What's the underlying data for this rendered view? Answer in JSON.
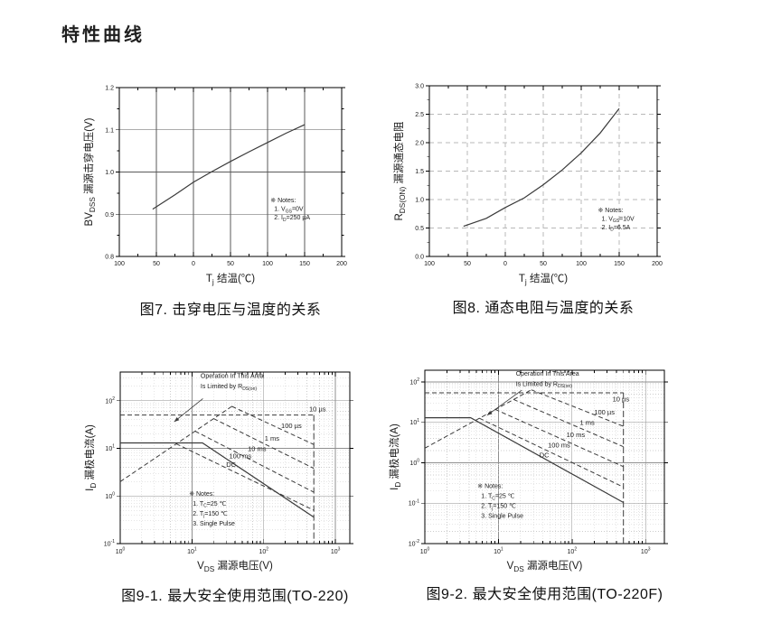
{
  "page": {
    "title": "特性曲线"
  },
  "colors": {
    "ink": "#1a1a1a",
    "curve": "#3a3a3a",
    "border": "#000000"
  },
  "chart_data": [
    {
      "id": "fig7",
      "type": "line",
      "caption": "图7. 击穿电压与温度的关系",
      "xlabel": [
        {
          "t": "T"
        },
        {
          "t": "j",
          "sub": true
        },
        {
          "t": " 结温(℃)"
        }
      ],
      "ylabel": [
        {
          "t": "BV"
        },
        {
          "t": "DSS",
          "sub": true
        },
        {
          "t": " 漏源击穿电压(V)"
        }
      ],
      "x_axis": {
        "type": "linear",
        "min": -100,
        "max": 200,
        "ticks": [
          {
            "v": -100,
            "label": "100"
          },
          {
            "v": -50,
            "label": "50"
          },
          {
            "v": 0,
            "label": "0"
          },
          {
            "v": 50,
            "label": "50"
          },
          {
            "v": 100,
            "label": "100"
          },
          {
            "v": 150,
            "label": "150"
          },
          {
            "v": 200,
            "label": "200"
          }
        ]
      },
      "y_axis": {
        "type": "linear",
        "min": 0.8,
        "max": 1.2,
        "ticks": [
          {
            "v": 0.8,
            "label": "0.8"
          },
          {
            "v": 0.9,
            "label": "0.9"
          },
          {
            "v": 1.0,
            "label": "1.0"
          },
          {
            "v": 1.1,
            "label": "1.1"
          },
          {
            "v": 1.2,
            "label": "1.2"
          }
        ]
      },
      "grid": {
        "style": "solid",
        "color": "#5a5a5a"
      },
      "series": [
        {
          "name": "bvdss-vs-tj",
          "style": "solid",
          "x": [
            -55,
            -25,
            0,
            25,
            50,
            75,
            100,
            125,
            150
          ],
          "y": [
            0.912,
            0.946,
            0.976,
            1.001,
            1.025,
            1.048,
            1.07,
            1.092,
            1.112
          ]
        }
      ],
      "notes": {
        "x": 0.68,
        "y": 0.68,
        "lh": 9.5,
        "lines": [
          [
            {
              "t": "※ Notes:"
            }
          ],
          [
            {
              "t": "1. V"
            },
            {
              "t": "GS",
              "sub": true
            },
            {
              "t": "=0V"
            }
          ],
          [
            {
              "t": "2. I"
            },
            {
              "t": "D",
              "sub": true
            },
            {
              "t": "=250 µA"
            }
          ]
        ]
      }
    },
    {
      "id": "fig8",
      "type": "line",
      "caption": "图8. 通态电阻与温度的关系",
      "xlabel": [
        {
          "t": "T"
        },
        {
          "t": "j",
          "sub": true
        },
        {
          "t": " 结温(℃)"
        }
      ],
      "ylabel": [
        {
          "t": "R"
        },
        {
          "t": "DS(ON)",
          "sub": true
        },
        {
          "t": " 漏源通态电阻"
        }
      ],
      "x_axis": {
        "type": "linear",
        "min": -100,
        "max": 200,
        "ticks": [
          {
            "v": -100,
            "label": "100"
          },
          {
            "v": -50,
            "label": "50"
          },
          {
            "v": 0,
            "label": "0"
          },
          {
            "v": 50,
            "label": "50"
          },
          {
            "v": 100,
            "label": "100"
          },
          {
            "v": 150,
            "label": "150"
          },
          {
            "v": 200,
            "label": "200"
          }
        ]
      },
      "y_axis": {
        "type": "linear",
        "min": 0,
        "max": 3.0,
        "ticks": [
          {
            "v": 0,
            "label": "0.0"
          },
          {
            "v": 0.5,
            "label": "0.5"
          },
          {
            "v": 1.0,
            "label": "1.0"
          },
          {
            "v": 1.5,
            "label": "1.5"
          },
          {
            "v": 2.0,
            "label": "2.0"
          },
          {
            "v": 2.5,
            "label": "2.5"
          },
          {
            "v": 3.0,
            "label": "3.0"
          }
        ]
      },
      "grid": {
        "style": "dashed",
        "color": "#b8b8b8"
      },
      "series": [
        {
          "name": "rdson-vs-tj",
          "style": "solid",
          "x": [
            -55,
            -25,
            0,
            25,
            50,
            75,
            100,
            125,
            150
          ],
          "y": [
            0.53,
            0.67,
            0.86,
            1.03,
            1.26,
            1.52,
            1.82,
            2.17,
            2.6
          ]
        }
      ],
      "notes": {
        "x": 0.74,
        "y": 0.74,
        "lh": 9.5,
        "lines": [
          [
            {
              "t": "※ Notes:"
            }
          ],
          [
            {
              "t": "1. V"
            },
            {
              "t": "GS",
              "sub": true
            },
            {
              "t": "=10V"
            }
          ],
          [
            {
              "t": "2. I"
            },
            {
              "t": "D",
              "sub": true
            },
            {
              "t": "=6.5A"
            }
          ]
        ]
      }
    },
    {
      "id": "fig9-1",
      "type": "line",
      "caption": "图9-1. 最大安全使用范围(TO-220)",
      "xlabel": [
        {
          "t": "V"
        },
        {
          "t": "DS",
          "sub": true
        },
        {
          "t": " 漏源电压(V)"
        }
      ],
      "ylabel": [
        {
          "t": "I"
        },
        {
          "t": "D",
          "sub": true
        },
        {
          "t": " 漏极电流(A)"
        }
      ],
      "x_axis": {
        "type": "log",
        "min": 1,
        "max": 1585,
        "ticks": [
          {
            "v": 1,
            "exp": "0"
          },
          {
            "v": 10,
            "exp": "1"
          },
          {
            "v": 100,
            "exp": "2"
          },
          {
            "v": 1000,
            "exp": "3"
          }
        ]
      },
      "y_axis": {
        "type": "log",
        "min": 0.1,
        "max": 400,
        "ticks": [
          {
            "v": 100,
            "exp": "2"
          },
          {
            "v": 10,
            "exp": "1"
          },
          {
            "v": 1,
            "exp": "0"
          },
          {
            "v": 0.1,
            "exp": "-1"
          }
        ]
      },
      "grid": {
        "major_color": "#8f8f8f",
        "minor_color": "#cccccc"
      },
      "series": [
        {
          "name": "rdson-limit-line",
          "style": "dashed",
          "x": [
            1,
            36
          ],
          "y": [
            2,
            76
          ]
        },
        {
          "name": "pulse-10us",
          "style": "dashed",
          "x": [
            1,
            500
          ],
          "y": [
            50,
            50
          ],
          "label": {
            "text": "10 µs",
            "x": 430,
            "y": 60
          }
        },
        {
          "name": "pulse-100us",
          "style": "dashed",
          "x": [
            36,
            500
          ],
          "y": [
            76,
            12
          ],
          "label": {
            "text": "100 µs",
            "x": 175,
            "y": 27
          }
        },
        {
          "name": "pulse-1ms",
          "style": "dashed",
          "x": [
            20,
            500
          ],
          "y": [
            42,
            3.8
          ],
          "label": {
            "text": "1 ms",
            "x": 103,
            "y": 14.5
          }
        },
        {
          "name": "pulse-10ms",
          "style": "dashed",
          "x": [
            11,
            500
          ],
          "y": [
            23,
            1.2
          ],
          "label": {
            "text": "10 ms",
            "x": 60,
            "y": 8.8
          }
        },
        {
          "name": "pulse-100ms",
          "style": "dashed",
          "x": [
            6,
            500
          ],
          "y": [
            12.5,
            0.5
          ],
          "label": {
            "text": "100 ms",
            "x": 33,
            "y": 6.2
          }
        },
        {
          "name": "dc-limit",
          "style": "solid",
          "x": [
            1,
            14,
            500
          ],
          "y": [
            13,
            13,
            0.36
          ],
          "label": {
            "text": "DC",
            "x": 30,
            "y": 4.1
          }
        },
        {
          "name": "voltage-limit",
          "style": "dashlong",
          "x": [
            500,
            500
          ],
          "y": [
            50,
            0.1
          ]
        }
      ],
      "annotation": {
        "x": 0.35,
        "lines_y": [
          0.035,
          0.095
        ],
        "lines": [
          [
            {
              "t": "Operation In This Area"
            }
          ],
          [
            {
              "t": "Is Limited by R"
            },
            {
              "t": "DS(on)",
              "sub": true
            }
          ]
        ],
        "arrow": {
          "x1": 0.36,
          "y1": 0.155,
          "x2": 0.235,
          "y2": 0.29
        }
      },
      "notes": {
        "x": 0.3,
        "y": 0.72,
        "lh": 11,
        "lines": [
          [
            {
              "t": "※ Notes:"
            }
          ],
          [
            {
              "t": "1. T"
            },
            {
              "t": "C",
              "sub": true
            },
            {
              "t": "=25 ℃"
            }
          ],
          [
            {
              "t": "2. T"
            },
            {
              "t": "j",
              "sub": true
            },
            {
              "t": "=150 ℃"
            }
          ],
          [
            {
              "t": "3. Single Pulse"
            }
          ]
        ]
      }
    },
    {
      "id": "fig9-2",
      "type": "line",
      "caption": "图9-2. 最大安全使用范围(TO-220F)",
      "xlabel": [
        {
          "t": "V"
        },
        {
          "t": "DS",
          "sub": true
        },
        {
          "t": " 漏源电压(V)"
        }
      ],
      "ylabel": [
        {
          "t": "I"
        },
        {
          "t": "D",
          "sub": true
        },
        {
          "t": " 漏极电流(A)"
        }
      ],
      "x_axis": {
        "type": "log",
        "min": 1,
        "max": 1800,
        "ticks": [
          {
            "v": 1,
            "exp": "0"
          },
          {
            "v": 10,
            "exp": "1"
          },
          {
            "v": 100,
            "exp": "2"
          },
          {
            "v": 1000,
            "exp": "3"
          }
        ]
      },
      "y_axis": {
        "type": "log",
        "min": 0.01,
        "max": 195,
        "ticks": [
          {
            "v": 100,
            "exp": "2"
          },
          {
            "v": 10,
            "exp": "1"
          },
          {
            "v": 1,
            "exp": "0"
          },
          {
            "v": 0.1,
            "exp": "-1"
          },
          {
            "v": 0.01,
            "exp": "-2"
          }
        ]
      },
      "grid": {
        "major_color": "#8f8f8f",
        "minor_color": "#cccccc"
      },
      "series": [
        {
          "name": "rdson-limit-line",
          "style": "dashed",
          "x": [
            1,
            28
          ],
          "y": [
            2.3,
            64
          ]
        },
        {
          "name": "pulse-10us",
          "style": "dashed",
          "x": [
            1,
            500
          ],
          "y": [
            54,
            54
          ],
          "label": {
            "text": "10 µs",
            "x": 355,
            "y": 33
          }
        },
        {
          "name": "pulse-100us",
          "style": "dashed",
          "x": [
            28,
            500
          ],
          "y": [
            64,
            8
          ],
          "label": {
            "text": "100 µs",
            "x": 200,
            "y": 15.5
          }
        },
        {
          "name": "pulse-1ms",
          "style": "dashed",
          "x": [
            16,
            500
          ],
          "y": [
            37,
            2.5
          ],
          "label": {
            "text": "1 ms",
            "x": 128,
            "y": 8.6
          }
        },
        {
          "name": "pulse-10ms",
          "style": "dashed",
          "x": [
            9,
            500
          ],
          "y": [
            21,
            0.8
          ],
          "label": {
            "text": "10 ms",
            "x": 84,
            "y": 4.3
          }
        },
        {
          "name": "pulse-100ms",
          "style": "dashed",
          "x": [
            5.5,
            500
          ],
          "y": [
            12.6,
            0.25
          ],
          "label": {
            "text": "100 ms",
            "x": 47,
            "y": 2.4
          }
        },
        {
          "name": "dc-limit",
          "style": "solid",
          "x": [
            1,
            4.2,
            500
          ],
          "y": [
            13,
            13,
            0.104
          ],
          "label": {
            "text": "DC",
            "x": 36,
            "y": 1.35
          }
        },
        {
          "name": "voltage-limit",
          "style": "dashlong",
          "x": [
            500,
            500
          ],
          "y": [
            54,
            0.01
          ]
        }
      ],
      "annotation": {
        "x": 0.38,
        "lines_y": [
          0.03,
          0.09
        ],
        "lines": [
          [
            {
              "t": "Operation In This Area"
            }
          ],
          [
            {
              "t": "Is Limited by R"
            },
            {
              "t": "DS(on)",
              "sub": true
            }
          ]
        ],
        "arrow": {
          "x1": 0.405,
          "y1": 0.115,
          "x2": 0.26,
          "y2": 0.26
        }
      },
      "notes": {
        "x": 0.22,
        "y": 0.68,
        "lh": 11,
        "lines": [
          [
            {
              "t": "※ Notes:"
            }
          ],
          [
            {
              "t": "1. T"
            },
            {
              "t": "C",
              "sub": true
            },
            {
              "t": "=25 ℃"
            }
          ],
          [
            {
              "t": "2. T"
            },
            {
              "t": "j",
              "sub": true
            },
            {
              "t": "=150 ℃"
            }
          ],
          [
            {
              "t": "3. Single Pulse"
            }
          ]
        ]
      }
    }
  ]
}
